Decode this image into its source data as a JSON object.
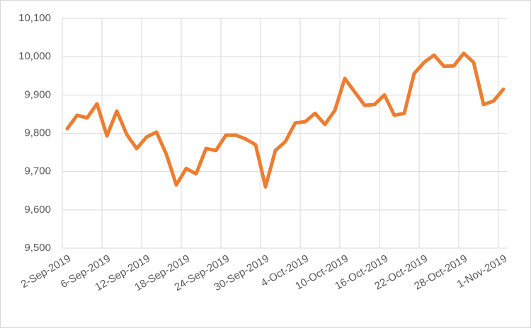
{
  "chart_data": {
    "type": "line",
    "categories": [
      "2-Sep-2019",
      null,
      null,
      null,
      "6-Sep-2019",
      null,
      null,
      null,
      "12-Sep-2019",
      null,
      null,
      null,
      "18-Sep-2019",
      null,
      null,
      null,
      "24-Sep-2019",
      null,
      null,
      null,
      "30-Sep-2019",
      null,
      null,
      null,
      "4-Oct-2019",
      null,
      null,
      null,
      "10-Oct-2019",
      null,
      null,
      null,
      "16-Oct-2019",
      null,
      null,
      null,
      "22-Oct-2019",
      null,
      null,
      null,
      "28-Oct-2019",
      null,
      null,
      null,
      "1-Nov-2019"
    ],
    "values": [
      9812,
      9847,
      9840,
      9877,
      9793,
      9858,
      9797,
      9760,
      9790,
      9803,
      9745,
      9665,
      9708,
      9694,
      9760,
      9755,
      9795,
      9795,
      9785,
      9770,
      9660,
      9755,
      9778,
      9827,
      9830,
      9852,
      9823,
      9860,
      9943,
      9908,
      9873,
      9875,
      9900,
      9847,
      9852,
      9956,
      9985,
      10004,
      9975,
      9976,
      10009,
      9985,
      9875,
      9884,
      9915
    ],
    "color": "#ed7d31",
    "ylim": [
      9500,
      10100
    ],
    "yticks": [
      {
        "value": 9500,
        "label": "9,500"
      },
      {
        "value": 9600,
        "label": "9,600"
      },
      {
        "value": 9700,
        "label": "9,700"
      },
      {
        "value": 9800,
        "label": "9,800"
      },
      {
        "value": 9900,
        "label": "9,900"
      },
      {
        "value": 10000,
        "label": "10,000"
      },
      {
        "value": 10100,
        "label": "10,100"
      }
    ],
    "grid": true
  }
}
